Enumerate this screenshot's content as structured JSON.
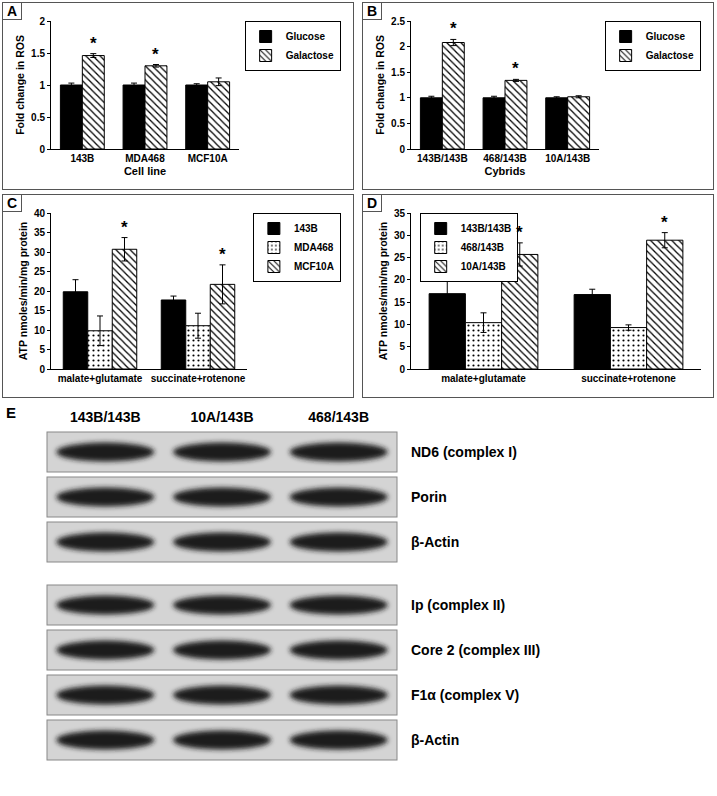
{
  "chart_data": [
    {
      "type": "bar",
      "title": "A",
      "categories": [
        "143B",
        "MDA468",
        "MCF10A"
      ],
      "x_label": "Cell line",
      "y_label": "Fold change in ROS",
      "series": [
        {
          "name": "Glucose",
          "color": "#000000",
          "marker": "solid",
          "values": [
            1,
            1,
            1
          ],
          "errors": [
            0.03,
            0.03,
            0.02
          ]
        },
        {
          "name": "Galactose",
          "color": "#000000",
          "marker": "hatch",
          "values": [
            1.46,
            1.3,
            1.05
          ],
          "errors": [
            0.03,
            0.02,
            0.06
          ]
        }
      ],
      "ylim": [
        0,
        2
      ],
      "yticks": [
        0,
        0.5,
        1,
        1.5,
        2
      ],
      "grid": false,
      "legend": "top right",
      "annotations": [
        {
          "text": "*",
          "category": "143B",
          "series": "Galactose"
        },
        {
          "text": "*",
          "category": "MDA468",
          "series": "Galactose"
        }
      ]
    },
    {
      "type": "bar",
      "title": "B",
      "categories": [
        "143B/143B",
        "468/143B",
        "10A/143B"
      ],
      "x_label": "Cybrids",
      "y_label": "Fold change in ROS",
      "series": [
        {
          "name": "Glucose",
          "color": "#000000",
          "marker": "solid",
          "values": [
            1,
            1,
            1
          ],
          "errors": [
            0.03,
            0.03,
            0.02
          ]
        },
        {
          "name": "Galactose",
          "color": "#000000",
          "marker": "hatch",
          "values": [
            2.08,
            1.34,
            1.02
          ],
          "errors": [
            0.06,
            0.02,
            0.02
          ]
        }
      ],
      "ylim": [
        0,
        2.5
      ],
      "yticks": [
        0,
        0.5,
        1,
        1.5,
        2,
        2.5
      ],
      "grid": false,
      "legend": "top right",
      "annotations": [
        {
          "text": "*",
          "category": "143B/143B",
          "series": "Galactose"
        },
        {
          "text": "*",
          "category": "468/143B",
          "series": "Galactose"
        }
      ]
    },
    {
      "type": "bar",
      "title": "C",
      "categories": [
        "malate+glutamate",
        "succinate+rotenone"
      ],
      "y_label": "ATP nmoles/min/mg protein",
      "series": [
        {
          "name": "143B",
          "color": "#000000",
          "marker": "solid",
          "values": [
            19.8,
            17.7
          ],
          "errors": [
            3.1,
            1.0
          ]
        },
        {
          "name": "MDA468",
          "color": "#000000",
          "marker": "dots",
          "values": [
            9.8,
            11.1
          ],
          "errors": [
            3.8,
            3.2
          ]
        },
        {
          "name": "MCF10A",
          "color": "#000000",
          "marker": "hatch",
          "values": [
            30.7,
            21.7
          ],
          "errors": [
            3.0,
            5.0
          ]
        }
      ],
      "ylim": [
        0,
        40
      ],
      "yticks": [
        0,
        5,
        10,
        15,
        20,
        25,
        30,
        35,
        40
      ],
      "grid": false,
      "legend": "top right",
      "annotations": [
        {
          "text": "*",
          "category": "malate+glutamate",
          "series": "MCF10A"
        },
        {
          "text": "*",
          "category": "succinate+rotenone",
          "series": "MCF10A"
        }
      ]
    },
    {
      "type": "bar",
      "title": "D",
      "categories": [
        "malate+glutamate",
        "succinate+rotenone"
      ],
      "y_label": "ATP nmoles/min/mg protein",
      "series": [
        {
          "name": "143B/143B",
          "color": "#000000",
          "marker": "solid",
          "values": [
            16.9,
            16.7
          ],
          "errors": [
            2.8,
            1.2
          ]
        },
        {
          "name": "468/143B",
          "color": "#000000",
          "marker": "dots",
          "values": [
            10.4,
            9.3
          ],
          "errors": [
            2.2,
            0.6
          ]
        },
        {
          "name": "10A/143B",
          "color": "#000000",
          "marker": "hatch",
          "values": [
            25.7,
            28.9
          ],
          "errors": [
            2.6,
            1.7
          ]
        }
      ],
      "ylim": [
        0,
        35
      ],
      "yticks": [
        0,
        5,
        10,
        15,
        20,
        25,
        30,
        35
      ],
      "grid": false,
      "legend": "top left",
      "annotations": [
        {
          "text": "*",
          "category": "malate+glutamate",
          "series": "10A/143B"
        },
        {
          "text": "*",
          "category": "succinate+rotenone",
          "series": "10A/143B"
        }
      ]
    }
  ],
  "blot": {
    "title": "E",
    "lanes": [
      "143B/143B",
      "10A/143B",
      "468/143B"
    ],
    "groups": [
      [
        "ND6 (complex I)",
        "Porin",
        "β-Actin"
      ],
      [
        "Ip (complex II)",
        "Core 2 (complex III)",
        "F1α (complex V)",
        "β-Actin"
      ]
    ]
  }
}
